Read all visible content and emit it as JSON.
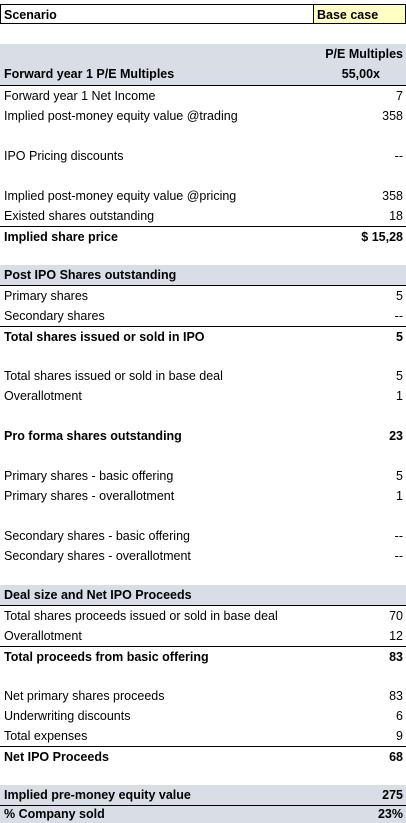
{
  "scenario": {
    "label": "Scenario",
    "value": "Base case"
  },
  "pe": {
    "column_header": "P/E Multiples",
    "title": "Forward year 1 P/E Multiples",
    "multiple": "55,00x",
    "rows": [
      {
        "label": "Forward year 1 Net Income",
        "value": "7"
      },
      {
        "label": "Implied post-money equity value @trading",
        "value": "358"
      },
      {
        "label": "IPO Pricing discounts",
        "value": "--"
      },
      {
        "label": "Implied post-money equity value @pricing",
        "value": "358"
      },
      {
        "label": "Existed shares outstanding",
        "value": "18"
      }
    ],
    "share_price": {
      "label": "Implied share price",
      "value": "$ 15,28"
    }
  },
  "shares": {
    "title": "Post IPO Shares outstanding",
    "rows": [
      {
        "label": "Primary shares",
        "value": "5"
      },
      {
        "label": "Secondary shares",
        "value": "--"
      }
    ],
    "total_ipo": {
      "label": "Total shares issued or sold in IPO",
      "value": "5"
    },
    "rows2": [
      {
        "label": "Total shares issued or sold in base deal",
        "value": "5"
      },
      {
        "label": "Overallotment",
        "value": "1"
      }
    ],
    "pro_forma": {
      "label": "Pro forma shares outstanding",
      "value": "23"
    },
    "rows3": [
      {
        "label": "Primary shares - basic offering",
        "value": "5"
      },
      {
        "label": "Primary shares - overallotment",
        "value": "1"
      },
      {
        "label": "Secondary shares - basic offering",
        "value": "--"
      },
      {
        "label": "Secondary shares - overallotment",
        "value": "--"
      }
    ]
  },
  "deal": {
    "title": "Deal size and Net IPO Proceeds",
    "rows": [
      {
        "label": "Total shares proceeds issued or sold in base deal",
        "value": "70"
      },
      {
        "label": "Overallotment",
        "value": "12"
      }
    ],
    "total_basic": {
      "label": "Total proceeds from basic offering",
      "value": "83"
    },
    "rows2": [
      {
        "label": "Net primary shares proceeds",
        "value": "83"
      },
      {
        "label": "Underwriting discounts",
        "value": "6"
      },
      {
        "label": "Total expenses",
        "value": "9"
      }
    ],
    "net": {
      "label": "Net IPO Proceeds",
      "value": "68"
    }
  },
  "summary": {
    "pre_money": {
      "label": "Implied pre-money equity value",
      "value": "275"
    },
    "company_sold": {
      "label": "% Company sold",
      "value": "23%"
    }
  }
}
